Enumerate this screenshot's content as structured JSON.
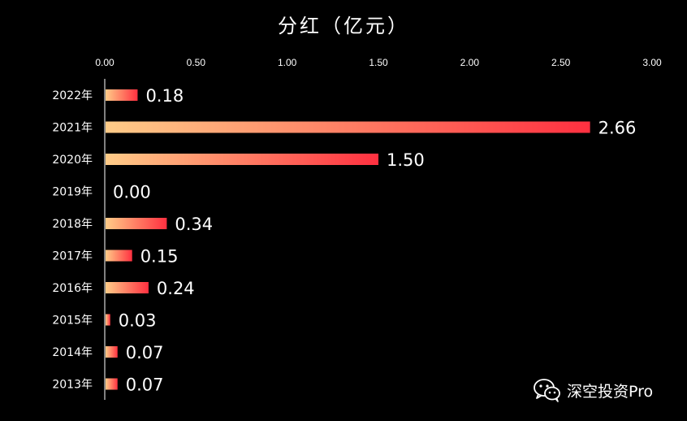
{
  "chart_data": {
    "type": "bar",
    "orientation": "horizontal",
    "title": "分红（亿元）",
    "categories": [
      "2022年",
      "2021年",
      "2020年",
      "2019年",
      "2018年",
      "2017年",
      "2016年",
      "2015年",
      "2014年",
      "2013年"
    ],
    "values": [
      0.18,
      2.66,
      1.5,
      0.0,
      0.34,
      0.15,
      0.24,
      0.03,
      0.07,
      0.07
    ],
    "value_labels": [
      "0.18",
      "2.66",
      "1.50",
      "0.00",
      "0.34",
      "0.15",
      "0.24",
      "0.03",
      "0.07",
      "0.07"
    ],
    "xlim": [
      0,
      3.0
    ],
    "xticks": [
      "0.00",
      "0.50",
      "1.00",
      "1.50",
      "2.00",
      "2.50",
      "3.00"
    ],
    "x_axis_position": "top",
    "xlabel": "",
    "ylabel": "",
    "grid": false,
    "legend": "none",
    "colors": {
      "background": "#000000",
      "bar_gradient_start": "#ffcc88",
      "bar_gradient_end": "#ff3040",
      "text": "#ffffff",
      "axis_line": "#ffffff"
    }
  },
  "watermark": {
    "icon": "wechat-icon",
    "text": "深空投资Pro"
  }
}
